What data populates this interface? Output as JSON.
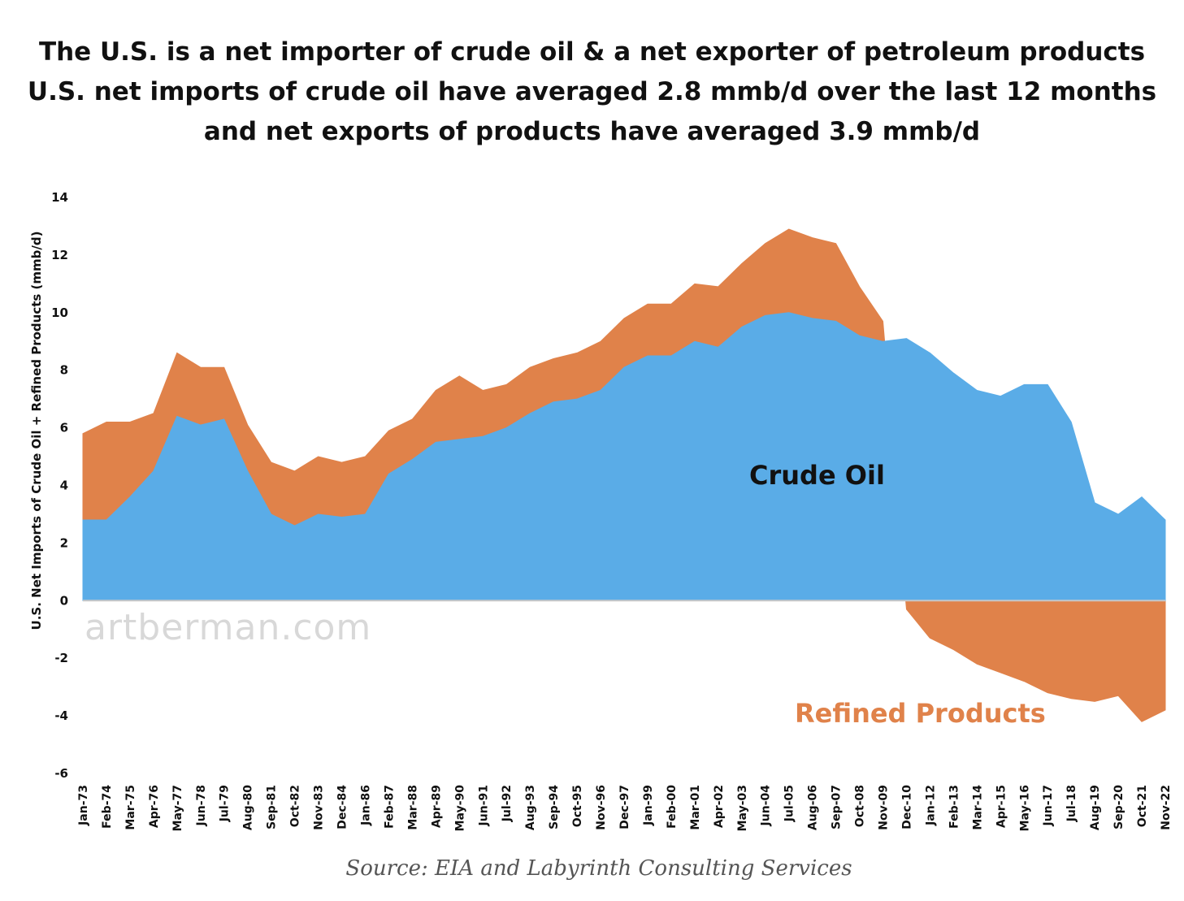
{
  "title": {
    "line1": "The U.S. is a net importer of crude oil & a net exporter of petroleum products",
    "line2": "U.S. net imports of crude oil have averaged 2.8 mmb/d over the last 12 months",
    "line3": "and net exports of products have averaged 3.9 mmb/d"
  },
  "source": "Source: EIA and Labyrinth Consulting Services",
  "watermark": "artberman.com",
  "colors": {
    "crude": "#5aace7",
    "products": "#e0824a",
    "zero_line": "#c7c7c7"
  },
  "chart_data": {
    "type": "area",
    "stacked": true,
    "ylabel": "U.S. Net Imports of Crude Oil + Refined Products (mmb/d)",
    "xlabel": "",
    "ylim": [
      -6,
      14
    ],
    "yticks": [
      14,
      12,
      10,
      8,
      6,
      4,
      2,
      0,
      -2,
      -4,
      -6
    ],
    "x_start": "Jan-73",
    "x_end": "Nov-22",
    "xticks": [
      "Jan-73",
      "Feb-74",
      "Mar-75",
      "Apr-76",
      "May-77",
      "Jun-78",
      "Jul-79",
      "Aug-80",
      "Sep-81",
      "Oct-82",
      "Nov-83",
      "Dec-84",
      "Jan-86",
      "Feb-87",
      "Mar-88",
      "Apr-89",
      "May-90",
      "Jun-91",
      "Jul-92",
      "Aug-93",
      "Sep-94",
      "Oct-95",
      "Nov-96",
      "Dec-97",
      "Jan-99",
      "Feb-00",
      "Mar-01",
      "Apr-02",
      "May-03",
      "Jun-04",
      "Jul-05",
      "Aug-06",
      "Sep-07",
      "Oct-08",
      "Nov-09",
      "Dec-10",
      "Jan-12",
      "Feb-13",
      "Mar-14",
      "Apr-15",
      "May-16",
      "Jun-17",
      "Jul-18",
      "Aug-19",
      "Sep-20",
      "Oct-21",
      "Nov-22"
    ],
    "annotations": [
      "Crude Oil",
      "Refined Products"
    ],
    "grid": false,
    "legend": "none",
    "series": [
      {
        "name": "Crude Oil",
        "x": [
          "Jan-73",
          "Feb-74",
          "Mar-75",
          "Apr-76",
          "May-77",
          "Jun-78",
          "Jul-79",
          "Aug-80",
          "Sep-81",
          "Oct-82",
          "Nov-83",
          "Dec-84",
          "Jan-86",
          "Feb-87",
          "Mar-88",
          "Apr-89",
          "May-90",
          "Jun-91",
          "Jul-92",
          "Aug-93",
          "Sep-94",
          "Oct-95",
          "Nov-96",
          "Dec-97",
          "Jan-99",
          "Feb-00",
          "Mar-01",
          "Apr-02",
          "May-03",
          "Jun-04",
          "Jul-05",
          "Aug-06",
          "Sep-07",
          "Oct-08",
          "Nov-09",
          "Dec-10",
          "Jan-12",
          "Feb-13",
          "Mar-14",
          "Apr-15",
          "May-16",
          "Jun-17",
          "Jul-18",
          "Aug-19",
          "Sep-20",
          "Oct-21",
          "Nov-22"
        ],
        "values": [
          2.8,
          2.8,
          3.6,
          4.5,
          6.4,
          6.1,
          6.3,
          4.5,
          3.0,
          2.6,
          3.0,
          2.9,
          3.0,
          4.4,
          4.9,
          5.5,
          5.6,
          5.7,
          6.0,
          6.5,
          6.9,
          7.0,
          7.3,
          8.1,
          8.5,
          8.5,
          9.0,
          8.8,
          9.5,
          9.9,
          10.0,
          9.8,
          9.7,
          9.2,
          9.0,
          9.1,
          8.6,
          7.9,
          7.3,
          7.1,
          7.5,
          7.5,
          6.2,
          3.4,
          3.0,
          3.6,
          2.8
        ]
      },
      {
        "name": "Refined Products",
        "x": [
          "Jan-73",
          "Feb-74",
          "Mar-75",
          "Apr-76",
          "May-77",
          "Jun-78",
          "Jul-79",
          "Aug-80",
          "Sep-81",
          "Oct-82",
          "Nov-83",
          "Dec-84",
          "Jan-86",
          "Feb-87",
          "Mar-88",
          "Apr-89",
          "May-90",
          "Jun-91",
          "Jul-92",
          "Aug-93",
          "Sep-94",
          "Oct-95",
          "Nov-96",
          "Dec-97",
          "Jan-99",
          "Feb-00",
          "Mar-01",
          "Apr-02",
          "May-03",
          "Jun-04",
          "Jul-05",
          "Aug-06",
          "Sep-07",
          "Oct-08",
          "Nov-09",
          "Dec-10",
          "Jan-12",
          "Feb-13",
          "Mar-14",
          "Apr-15",
          "May-16",
          "Jun-17",
          "Jul-18",
          "Aug-19",
          "Sep-20",
          "Oct-21",
          "Nov-22"
        ],
        "values": [
          3.0,
          3.4,
          2.6,
          2.0,
          2.2,
          2.0,
          1.8,
          1.6,
          1.8,
          1.9,
          2.0,
          1.9,
          2.0,
          1.5,
          1.4,
          1.8,
          2.2,
          1.6,
          1.5,
          1.6,
          1.5,
          1.6,
          1.7,
          1.7,
          1.8,
          1.8,
          2.0,
          2.1,
          2.2,
          2.5,
          2.9,
          2.8,
          2.7,
          1.7,
          0.7,
          -0.3,
          -1.3,
          -1.7,
          -2.2,
          -2.5,
          -2.8,
          -3.2,
          -3.4,
          -3.5,
          -3.3,
          -4.2,
          -3.8
        ]
      }
    ]
  }
}
